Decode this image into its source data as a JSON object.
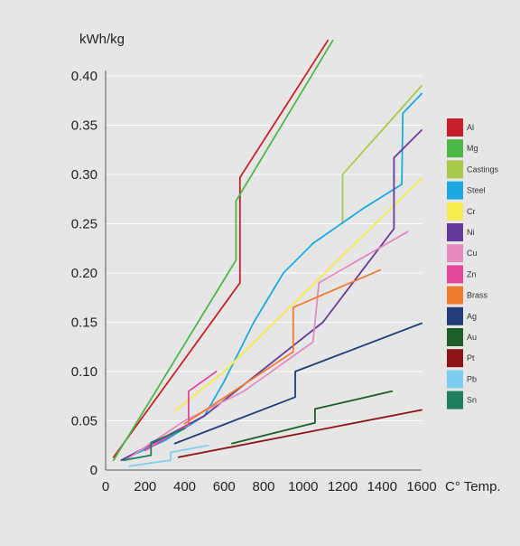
{
  "chart_data": {
    "type": "line",
    "title": "",
    "ylabel": "kWh/kg",
    "xlabel": "C° Temp.",
    "xlim": [
      0,
      1600
    ],
    "ylim": [
      0,
      0.4
    ],
    "x_ticks": [
      0,
      200,
      400,
      600,
      800,
      1000,
      1200,
      1400,
      1600
    ],
    "x_tick_labels": [
      "0",
      "200",
      "400",
      "600",
      "800",
      "1000",
      "1200",
      "1400",
      "1600"
    ],
    "y_ticks": [
      0,
      0.05,
      0.1,
      0.15,
      0.2,
      0.25,
      0.3,
      0.35,
      0.4
    ],
    "y_tick_labels": [
      "0",
      "0.05",
      "0.10",
      "0.15",
      "0.20",
      "0.25",
      "0.30",
      "0.35",
      "0.40"
    ],
    "grid": "horizontal",
    "legend_position": "right",
    "series": [
      {
        "name": "Al",
        "color": "#c8202a",
        "points": [
          [
            40,
            0.013
          ],
          [
            680,
            0.19
          ],
          [
            680,
            0.297
          ],
          [
            1125,
            0.436
          ]
        ]
      },
      {
        "name": "Mg",
        "color": "#4db848",
        "points": [
          [
            40,
            0.01
          ],
          [
            660,
            0.213
          ],
          [
            660,
            0.273
          ],
          [
            1150,
            0.436
          ]
        ]
      },
      {
        "name": "Castings",
        "color": "#a8c94a",
        "points": [
          [
            1200,
            0.25
          ],
          [
            1200,
            0.3
          ],
          [
            1600,
            0.39
          ]
        ]
      },
      {
        "name": "Steel",
        "color": "#1ba9e1",
        "points": [
          [
            80,
            0.01
          ],
          [
            300,
            0.03
          ],
          [
            500,
            0.055
          ],
          [
            600,
            0.09
          ],
          [
            750,
            0.15
          ],
          [
            900,
            0.2
          ],
          [
            1050,
            0.23
          ],
          [
            1300,
            0.265
          ],
          [
            1500,
            0.29
          ],
          [
            1505,
            0.362
          ],
          [
            1600,
            0.382
          ]
        ]
      },
      {
        "name": "Cr",
        "color": "#f6ec4f",
        "points": [
          [
            350,
            0.06
          ],
          [
            600,
            0.1
          ],
          [
            1600,
            0.296
          ]
        ]
      },
      {
        "name": "Ni",
        "color": "#663a98",
        "points": [
          [
            80,
            0.01
          ],
          [
            500,
            0.055
          ],
          [
            1100,
            0.15
          ],
          [
            1460,
            0.245
          ],
          [
            1460,
            0.317
          ],
          [
            1600,
            0.345
          ]
        ]
      },
      {
        "name": "Cu",
        "color": "#e48ac0",
        "points": [
          [
            100,
            0.01
          ],
          [
            400,
            0.05
          ],
          [
            700,
            0.08
          ],
          [
            1050,
            0.13
          ],
          [
            1080,
            0.19
          ],
          [
            1530,
            0.242
          ]
        ]
      },
      {
        "name": "Zn",
        "color": "#e3469a",
        "points": [
          [
            200,
            0.02
          ],
          [
            420,
            0.046
          ],
          [
            420,
            0.08
          ],
          [
            560,
            0.1
          ]
        ]
      },
      {
        "name": "Brass",
        "color": "#ee7d30",
        "points": [
          [
            400,
            0.047
          ],
          [
            950,
            0.12
          ],
          [
            950,
            0.165
          ],
          [
            1390,
            0.203
          ]
        ]
      },
      {
        "name": "Ag",
        "color": "#233c7a",
        "points": [
          [
            350,
            0.027
          ],
          [
            960,
            0.074
          ],
          [
            960,
            0.1
          ],
          [
            1600,
            0.149
          ]
        ]
      },
      {
        "name": "Au",
        "color": "#1b5e2a",
        "points": [
          [
            640,
            0.027
          ],
          [
            1060,
            0.048
          ],
          [
            1060,
            0.062
          ],
          [
            1450,
            0.08
          ]
        ]
      },
      {
        "name": "Pt",
        "color": "#8c1414",
        "points": [
          [
            370,
            0.013
          ],
          [
            1600,
            0.061
          ]
        ]
      },
      {
        "name": "Pb",
        "color": "#7fcdf0",
        "points": [
          [
            120,
            0.004
          ],
          [
            330,
            0.01
          ],
          [
            330,
            0.018
          ],
          [
            520,
            0.025
          ]
        ]
      },
      {
        "name": "Sn",
        "color": "#1e7f5c",
        "points": [
          [
            90,
            0.01
          ],
          [
            230,
            0.015
          ],
          [
            230,
            0.028
          ],
          [
            400,
            0.042
          ]
        ]
      }
    ]
  }
}
